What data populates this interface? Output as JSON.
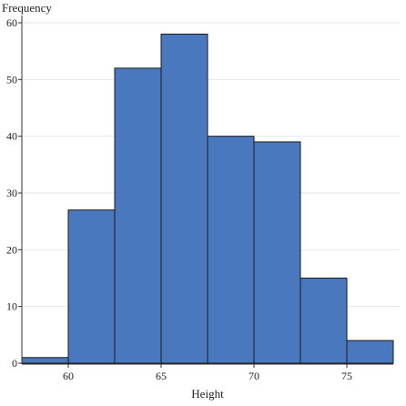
{
  "chart_data": {
    "type": "bar",
    "ylabel": "Frequency",
    "xlabel": "Height",
    "bins": [
      {
        "x0": 57.5,
        "x1": 60,
        "count": 1
      },
      {
        "x0": 60,
        "x1": 62.5,
        "count": 27
      },
      {
        "x0": 62.5,
        "x1": 65,
        "count": 52
      },
      {
        "x0": 65,
        "x1": 67.5,
        "count": 58
      },
      {
        "x0": 67.5,
        "x1": 70,
        "count": 40
      },
      {
        "x0": 70,
        "x1": 72.5,
        "count": 39
      },
      {
        "x0": 72.5,
        "x1": 75,
        "count": 15
      },
      {
        "x0": 75,
        "x1": 77.5,
        "count": 4
      }
    ],
    "xlim": [
      57.5,
      77.5
    ],
    "ylim": [
      0,
      60
    ],
    "xticks": [
      60,
      65,
      70,
      75
    ],
    "yticks": [
      0,
      10,
      20,
      30,
      40,
      50,
      60
    ],
    "grid": true,
    "bar_color": "#4a78bf"
  }
}
